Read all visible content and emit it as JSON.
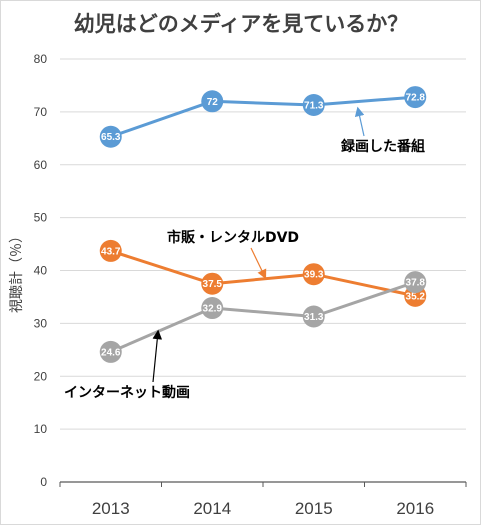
{
  "chart_data": {
    "type": "line",
    "title": "幼児はどのメディアを見ているか？",
    "ylabel": "視聴計（％）",
    "xlabel": "",
    "categories": [
      "2013",
      "2014",
      "2015",
      "2016"
    ],
    "ylim": [
      0,
      80
    ],
    "yticks": [
      "0",
      "10",
      "20",
      "30",
      "40",
      "50",
      "60",
      "70",
      "80"
    ],
    "grid": true,
    "series": [
      {
        "name": "録画した番組",
        "color": "#5b9bd5",
        "values": [
          65.3,
          72,
          71.3,
          72.8
        ],
        "labels": [
          "65.3",
          "72",
          "71.3",
          "72.8"
        ]
      },
      {
        "name": "市販・レンタルDVD",
        "color": "#ed7d31",
        "values": [
          43.7,
          37.5,
          39.3,
          35.2
        ],
        "labels": [
          "43.7",
          "37.5",
          "39.3",
          "35.2"
        ]
      },
      {
        "name": "インターネット動画",
        "color": "#a5a5a5",
        "values": [
          24.6,
          32.9,
          31.3,
          37.8
        ],
        "labels": [
          "24.6",
          "32.9",
          "31.3",
          "37.8"
        ]
      }
    ],
    "annotations": [
      {
        "text": "録画した番組",
        "color": "#2e75b6"
      },
      {
        "text": "市販・レンタルDVD",
        "color": "#ed7d31"
      },
      {
        "text": "インターネット動画",
        "color": "#404040"
      }
    ]
  }
}
